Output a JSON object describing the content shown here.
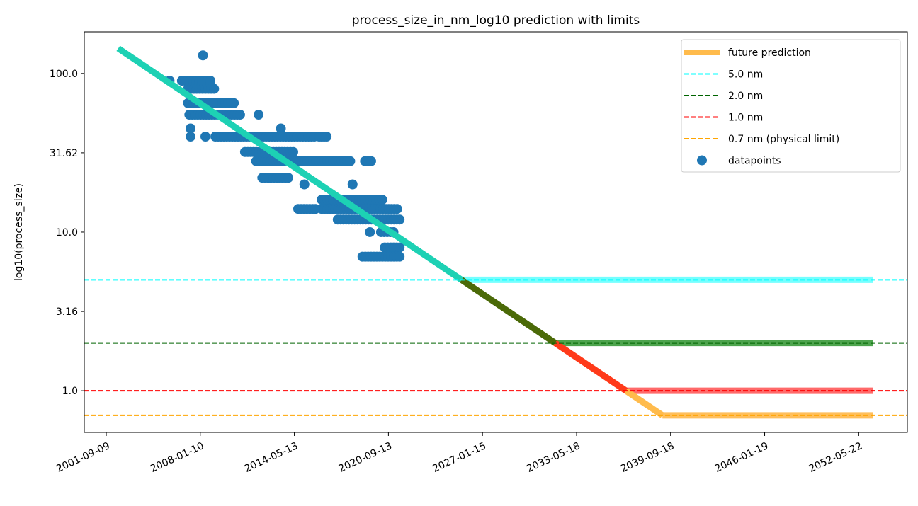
{
  "chart_data": {
    "type": "scatter",
    "title": "process_size_in_nm_log10 prediction with limits",
    "xlabel": "",
    "ylabel": "log10(process_size)",
    "y_scale": "log10",
    "xlim": [
      "2000-03-17",
      "2055-09-01"
    ],
    "ylim_nm": [
      0.546,
      183
    ],
    "x_ticks": [
      "2001-09-09",
      "2008-01-10",
      "2014-05-13",
      "2020-09-13",
      "2027-01-15",
      "2033-05-18",
      "2039-09-18",
      "2046-01-19",
      "2052-05-22"
    ],
    "y_ticks": [
      {
        "nm": 100,
        "label": "100.0"
      },
      {
        "nm": 31.62,
        "label": "31.62"
      },
      {
        "nm": 10,
        "label": "10.0"
      },
      {
        "nm": 3.16,
        "label": "3.16"
      },
      {
        "nm": 1,
        "label": "1.0"
      }
    ],
    "grid": false,
    "legend_position": "top-right",
    "legend": [
      "future prediction",
      "5.0 nm",
      "2.0 nm",
      "1.0 nm",
      "0.7 nm (physical limit)",
      "datapoints"
    ],
    "limits": [
      {
        "name": "5.0 nm",
        "nm": 5.0,
        "color": "#00ffff",
        "band_color": "#66ffff"
      },
      {
        "name": "2.0 nm",
        "nm": 2.0,
        "color": "#006400",
        "band_color": "#3a9a3a"
      },
      {
        "name": "1.0 nm",
        "nm": 1.0,
        "color": "#ff0000",
        "band_color": "#ff5a5a"
      },
      {
        "name": "0.7 nm (physical limit)",
        "nm": 0.7,
        "color": "#ffa500",
        "band_color": "#ffb84a"
      }
    ],
    "prediction": {
      "name": "future prediction",
      "start": {
        "date": "2002-07-01",
        "nm": 144
      },
      "floor": {
        "date": "2039-03-01",
        "nm": 0.7
      },
      "end": {
        "date": "2053-05-01"
      },
      "segment_colors": [
        "#1dd1b4",
        "#4b6a08",
        "#ff3a1a",
        "#ffbb4c"
      ],
      "legend_color": "#ffbb4c"
    },
    "datapoints": {
      "name": "datapoints",
      "color": "#1f77b4",
      "runs": [
        {
          "nm": 130,
          "from": "2008-03",
          "to": "2008-03"
        },
        {
          "nm": 90,
          "from": "2005-12",
          "to": "2005-12"
        },
        {
          "nm": 90,
          "from": "2006-10",
          "to": "2008-09"
        },
        {
          "nm": 80,
          "from": "2007-03",
          "to": "2008-12"
        },
        {
          "nm": 65,
          "from": "2007-03",
          "to": "2010-04"
        },
        {
          "nm": 55,
          "from": "2007-04",
          "to": "2010-09"
        },
        {
          "nm": 55,
          "from": "2011-12",
          "to": "2011-12"
        },
        {
          "nm": 45,
          "from": "2007-05",
          "to": "2007-05"
        },
        {
          "nm": 45,
          "from": "2013-06",
          "to": "2013-06"
        },
        {
          "nm": 40,
          "from": "2007-05",
          "to": "2007-05"
        },
        {
          "nm": 40,
          "from": "2008-05",
          "to": "2008-05"
        },
        {
          "nm": 40,
          "from": "2009-01",
          "to": "2015-09"
        },
        {
          "nm": 40,
          "from": "2016-01",
          "to": "2016-07"
        },
        {
          "nm": 32,
          "from": "2011-01",
          "to": "2014-04"
        },
        {
          "nm": 28,
          "from": "2011-10",
          "to": "2018-02"
        },
        {
          "nm": 28,
          "from": "2019-02",
          "to": "2019-07"
        },
        {
          "nm": 22,
          "from": "2012-03",
          "to": "2013-12"
        },
        {
          "nm": 20,
          "from": "2015-01",
          "to": "2015-01"
        },
        {
          "nm": 20,
          "from": "2018-04",
          "to": "2018-04"
        },
        {
          "nm": 16,
          "from": "2016-03",
          "to": "2020-04"
        },
        {
          "nm": 14,
          "from": "2014-08",
          "to": "2015-10"
        },
        {
          "nm": 14,
          "from": "2016-03",
          "to": "2021-04"
        },
        {
          "nm": 12,
          "from": "2017-04",
          "to": "2021-06"
        },
        {
          "nm": 10,
          "from": "2019-06",
          "to": "2019-06"
        },
        {
          "nm": 10,
          "from": "2020-03",
          "to": "2021-01"
        },
        {
          "nm": 8,
          "from": "2020-06",
          "to": "2021-06"
        },
        {
          "nm": 7,
          "from": "2018-12",
          "to": "2021-06"
        }
      ]
    }
  }
}
